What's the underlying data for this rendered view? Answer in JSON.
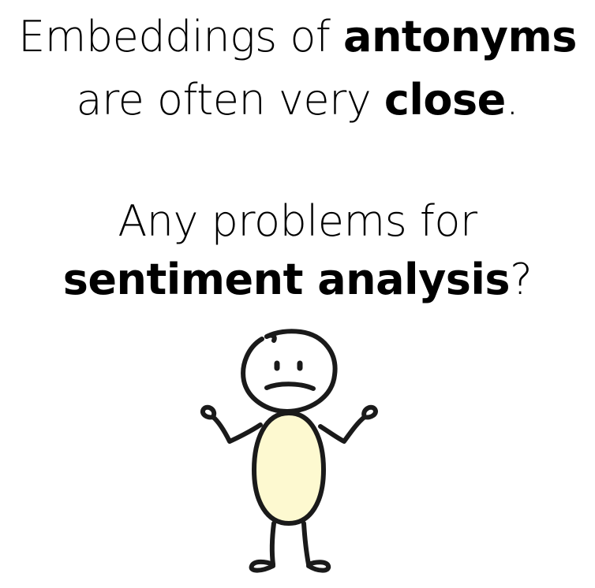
{
  "slide": {
    "heading": {
      "line1": {
        "part1": "Embeddings of ",
        "emphasis": "antonyms"
      },
      "line2": {
        "part1": "are often very ",
        "emphasis": "close",
        "part2": "."
      }
    },
    "question": {
      "line1": {
        "text": "Any problems for"
      },
      "line2": {
        "emphasis": "sentiment analysis",
        "part2": "?"
      }
    },
    "illustration": {
      "icon": "confused-stick-figure-icon",
      "body_fill": "#fdf9d0",
      "stroke": "#1a1a1a"
    }
  }
}
